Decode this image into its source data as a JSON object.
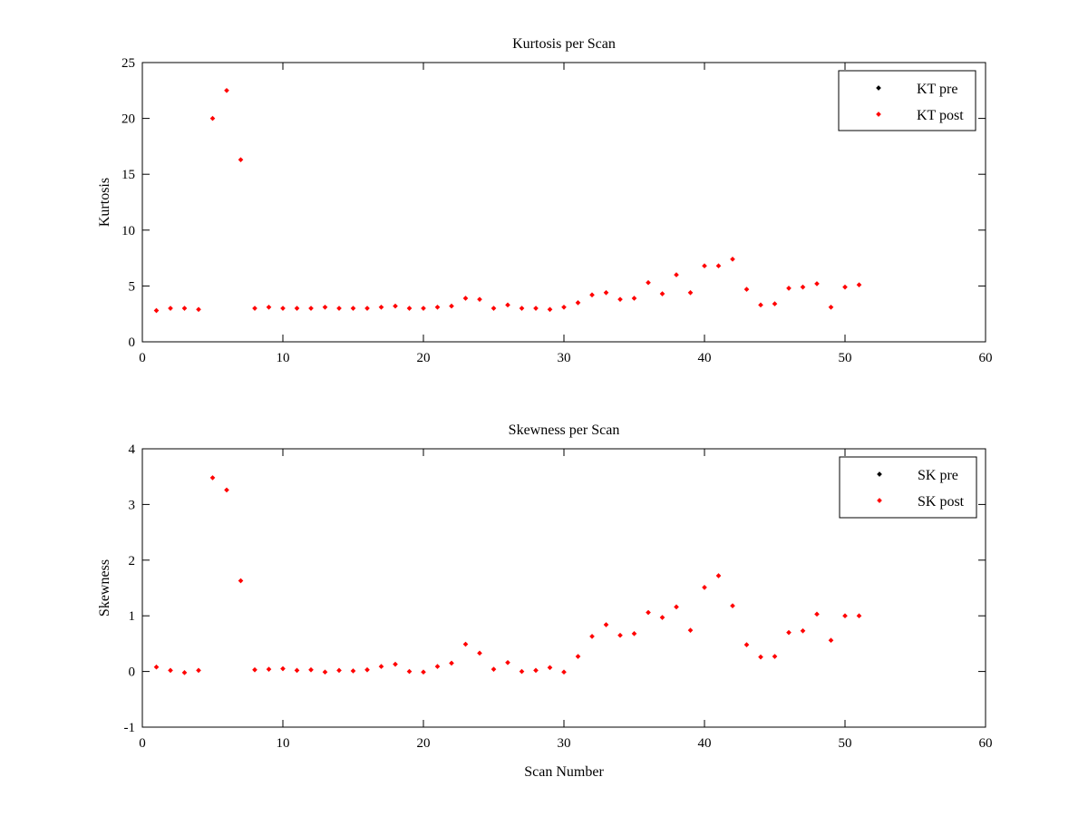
{
  "chart_data": [
    {
      "type": "scatter",
      "title": "Kurtosis per Scan",
      "xlabel": "",
      "ylabel": "Kurtosis",
      "xlim": [
        0,
        60
      ],
      "ylim": [
        0,
        25
      ],
      "xticks": [
        0,
        10,
        20,
        30,
        40,
        50,
        60
      ],
      "yticks": [
        0,
        5,
        10,
        15,
        20,
        25
      ],
      "grid": false,
      "legend_position": "top-right",
      "series": [
        {
          "name": "KT pre",
          "color": "#000000",
          "x": [],
          "y": []
        },
        {
          "name": "KT post",
          "color": "#ff0000",
          "x": [
            1,
            2,
            3,
            4,
            5,
            6,
            7,
            8,
            9,
            10,
            11,
            12,
            13,
            14,
            15,
            16,
            17,
            18,
            19,
            20,
            21,
            22,
            23,
            24,
            25,
            26,
            27,
            28,
            29,
            30,
            31,
            32,
            33,
            34,
            35,
            36,
            37,
            38,
            39,
            40,
            41,
            42,
            43,
            44,
            45,
            46,
            47,
            48,
            49,
            50,
            51
          ],
          "y": [
            2.8,
            3.0,
            3.0,
            2.9,
            20.0,
            22.5,
            16.3,
            3.0,
            3.1,
            3.0,
            3.0,
            3.0,
            3.1,
            3.0,
            3.0,
            3.0,
            3.1,
            3.2,
            3.0,
            3.0,
            3.1,
            3.2,
            3.9,
            3.8,
            3.0,
            3.3,
            3.0,
            3.0,
            2.9,
            3.1,
            3.5,
            4.2,
            4.4,
            3.8,
            3.9,
            5.3,
            4.3,
            6.0,
            4.4,
            6.8,
            6.8,
            7.4,
            4.7,
            3.3,
            3.4,
            4.8,
            4.9,
            5.2,
            3.1,
            4.9,
            5.1
          ]
        }
      ]
    },
    {
      "type": "scatter",
      "title": "Skewness per Scan",
      "xlabel": "Scan Number",
      "ylabel": "Skewness",
      "xlim": [
        0,
        60
      ],
      "ylim": [
        -1,
        4
      ],
      "xticks": [
        0,
        10,
        20,
        30,
        40,
        50,
        60
      ],
      "yticks": [
        -1,
        0,
        1,
        2,
        3,
        4
      ],
      "grid": false,
      "legend_position": "top-right",
      "series": [
        {
          "name": "SK pre",
          "color": "#000000",
          "x": [],
          "y": []
        },
        {
          "name": "SK post",
          "color": "#ff0000",
          "x": [
            1,
            2,
            3,
            4,
            5,
            6,
            7,
            8,
            9,
            10,
            11,
            12,
            13,
            14,
            15,
            16,
            17,
            18,
            19,
            20,
            21,
            22,
            23,
            24,
            25,
            26,
            27,
            28,
            29,
            30,
            31,
            32,
            33,
            34,
            35,
            36,
            37,
            38,
            39,
            40,
            41,
            42,
            43,
            44,
            45,
            46,
            47,
            48,
            49,
            50,
            51
          ],
          "y": [
            0.08,
            0.02,
            -0.02,
            0.02,
            3.48,
            3.26,
            1.63,
            0.03,
            0.04,
            0.05,
            0.02,
            0.03,
            -0.01,
            0.02,
            0.01,
            0.03,
            0.09,
            0.13,
            0.0,
            -0.01,
            0.09,
            0.15,
            0.49,
            0.33,
            0.04,
            0.16,
            0.0,
            0.02,
            0.07,
            -0.01,
            0.27,
            0.63,
            0.84,
            0.65,
            0.68,
            1.06,
            0.97,
            1.16,
            0.74,
            1.51,
            1.72,
            1.18,
            0.48,
            0.26,
            0.27,
            0.7,
            0.73,
            1.03,
            0.56,
            1.0,
            1.0
          ]
        }
      ]
    }
  ]
}
